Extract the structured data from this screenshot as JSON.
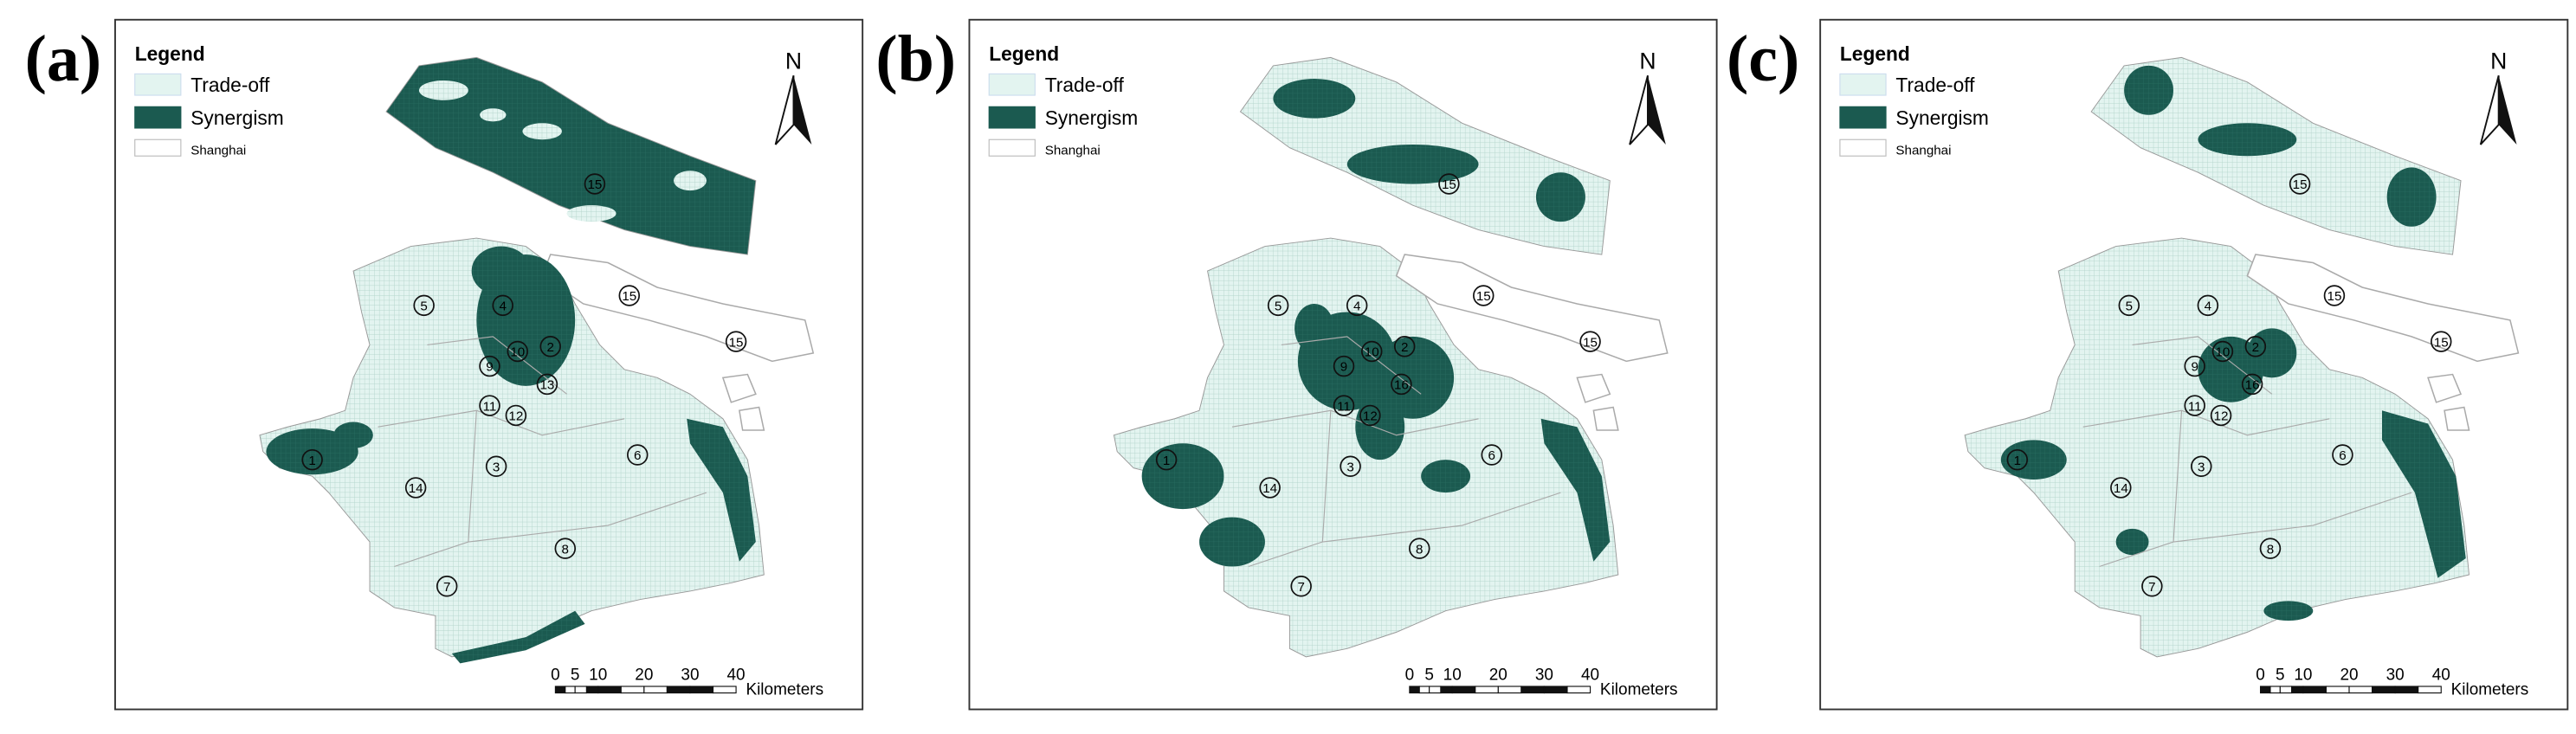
{
  "panels": [
    {
      "label": "(a)",
      "legend": {
        "title": "Legend",
        "items": [
          "Trade-off",
          "Synergism",
          "Shanghai"
        ]
      },
      "north": "N",
      "scale_bar": {
        "ticks": [
          "0",
          "5",
          "10",
          "20",
          "30",
          "40"
        ],
        "unit": "Kilometers"
      },
      "districts": [
        "15",
        "15",
        "15",
        "5",
        "4",
        "10",
        "2",
        "9",
        "13",
        "11",
        "12",
        "3",
        "6",
        "1",
        "14",
        "8",
        "7"
      ]
    },
    {
      "label": "(b)",
      "legend": {
        "title": "Legend",
        "items": [
          "Trade-off",
          "Synergism",
          "Shanghai"
        ]
      },
      "north": "N",
      "scale_bar": {
        "ticks": [
          "0",
          "5",
          "10",
          "20",
          "30",
          "40"
        ],
        "unit": "Kilometers"
      },
      "districts": [
        "15",
        "15",
        "15",
        "5",
        "4",
        "10",
        "2",
        "9",
        "16",
        "11",
        "12",
        "3",
        "6",
        "1",
        "14",
        "8",
        "7"
      ]
    },
    {
      "label": "(c)",
      "legend": {
        "title": "Legend",
        "items": [
          "Trade-off",
          "Synergism",
          "Shanghai"
        ]
      },
      "north": "N",
      "scale_bar": {
        "ticks": [
          "0",
          "5",
          "10",
          "20",
          "30",
          "40"
        ],
        "unit": "Kilometers"
      },
      "districts": [
        "15",
        "15",
        "15",
        "5",
        "4",
        "10",
        "2",
        "9",
        "16",
        "11",
        "12",
        "3",
        "6",
        "1",
        "14",
        "8",
        "7"
      ]
    }
  ]
}
